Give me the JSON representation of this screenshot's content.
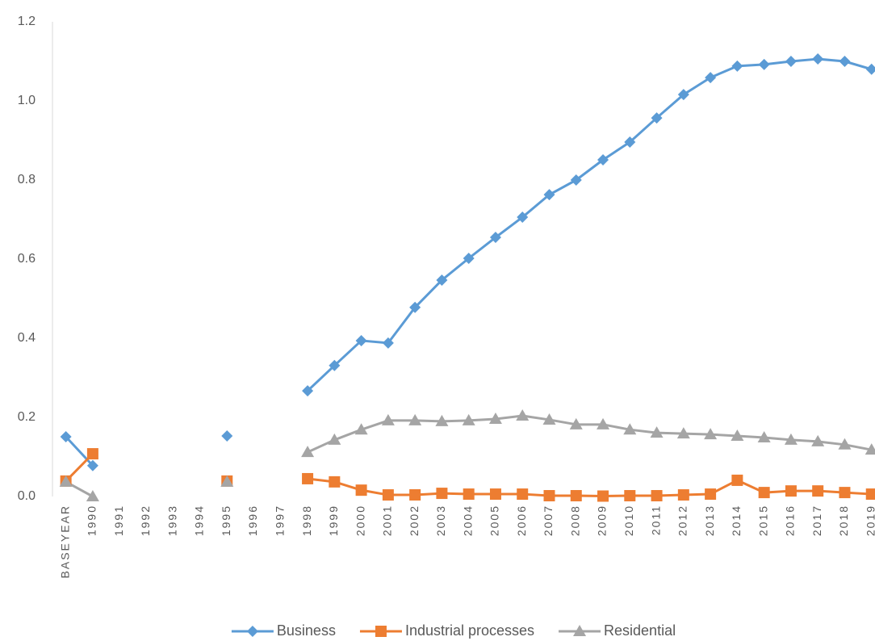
{
  "chart_data": {
    "type": "line",
    "categories": [
      "BASEYEAR",
      "1990",
      "1991",
      "1992",
      "1993",
      "1994",
      "1995",
      "1996",
      "1997",
      "1998",
      "1999",
      "2000",
      "2001",
      "2002",
      "2003",
      "2004",
      "2005",
      "2006",
      "2007",
      "2008",
      "2009",
      "2010",
      "2011",
      "2012",
      "2013",
      "2014",
      "2015",
      "2016",
      "2017",
      "2018",
      "2019"
    ],
    "series": [
      {
        "name": "Business",
        "color": "#5b9bd5",
        "marker": "diamond",
        "values": [
          0.151,
          0.078,
          null,
          null,
          null,
          null,
          0.153,
          null,
          null,
          0.267,
          0.331,
          0.394,
          0.388,
          0.478,
          0.547,
          0.602,
          0.655,
          0.706,
          0.763,
          0.8,
          0.851,
          0.896,
          0.957,
          1.016,
          1.059,
          1.088,
          1.092,
          1.1,
          1.106,
          1.1,
          1.08
        ]
      },
      {
        "name": "Industrial processes",
        "color": "#ed7d31",
        "marker": "square",
        "values": [
          0.039,
          0.108,
          null,
          null,
          null,
          null,
          0.039,
          null,
          null,
          0.045,
          0.037,
          0.016,
          0.004,
          0.004,
          0.008,
          0.006,
          0.006,
          0.006,
          0.002,
          0.002,
          0.001,
          0.002,
          0.002,
          0.004,
          0.006,
          0.041,
          0.01,
          0.014,
          0.014,
          0.01,
          0.006
        ]
      },
      {
        "name": "Residential",
        "color": "#a5a5a5",
        "marker": "triangle",
        "values": [
          0.037,
          0,
          null,
          null,
          null,
          null,
          0.037,
          null,
          null,
          0.112,
          0.143,
          0.169,
          0.192,
          0.192,
          0.19,
          0.192,
          0.196,
          0.204,
          0.194,
          0.182,
          0.182,
          0.169,
          0.161,
          0.159,
          0.157,
          0.153,
          0.149,
          0.143,
          0.139,
          0.131,
          0.118
        ]
      }
    ],
    "ylim": [
      0,
      1.2
    ],
    "yticks": [
      {
        "value": 0,
        "label": "0.0"
      },
      0.2,
      0.4,
      0.6,
      0.8,
      {
        "value": 1,
        "label": "1.0"
      },
      1.2
    ],
    "grid": false,
    "legend": "bottom"
  }
}
